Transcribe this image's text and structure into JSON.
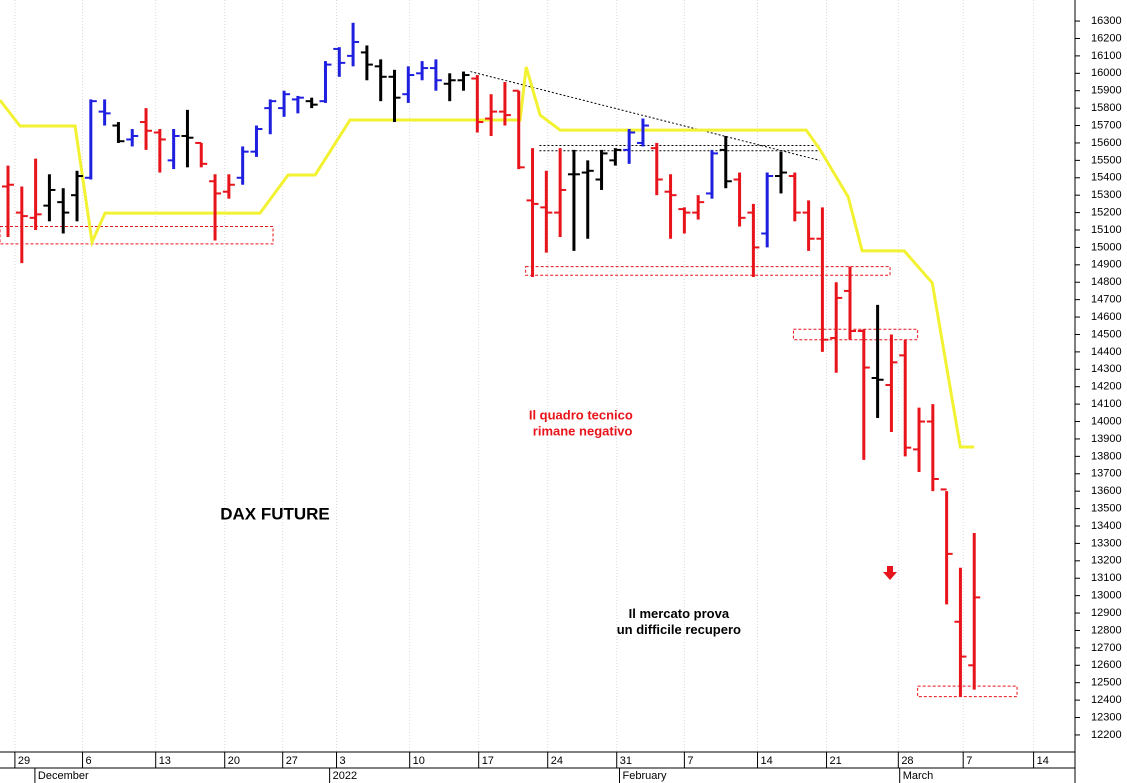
{
  "chart_data": {
    "type": "ohlc",
    "title": "DAX FUTURE",
    "x": [
      0,
      1,
      2,
      3,
      4,
      5,
      6,
      7,
      8,
      9,
      10,
      11,
      12,
      13,
      14,
      15,
      16,
      17,
      18,
      19,
      20,
      21,
      22,
      23,
      24,
      25,
      26,
      27,
      28,
      29,
      30,
      31,
      32,
      33,
      34,
      35,
      36,
      37,
      38,
      39,
      40,
      41,
      42,
      43,
      44,
      45,
      46,
      47,
      48,
      49,
      50,
      51,
      52,
      53,
      54,
      55,
      56,
      57,
      58,
      59,
      60,
      61,
      62,
      63,
      64,
      65,
      66,
      67,
      68,
      69,
      70
    ],
    "open": [
      15350,
      15200,
      15170,
      15240,
      15260,
      15300,
      15400,
      15780,
      15700,
      15620,
      15720,
      15660,
      15500,
      15640,
      15600,
      15380,
      15320,
      15400,
      15550,
      15800,
      15800,
      15850,
      15840,
      15840,
      16140,
      16100,
      16120,
      16040,
      15980,
      15880,
      16000,
      16030,
      15940,
      15960,
      15970,
      15740,
      15780,
      15900,
      15270,
      15230,
      15200,
      15420,
      15430,
      15390,
      15500,
      15560,
      15600,
      15570,
      15320,
      15220,
      15200,
      15310,
      15560,
      15390,
      15200,
      15080,
      15410,
      15410,
      15200,
      15050,
      14480,
      14750,
      14520,
      14250,
      14210,
      14380,
      13840,
      14000,
      13610,
      12850,
      12600
    ],
    "high": [
      15470,
      15350,
      15510,
      15420,
      15340,
      15440,
      15850,
      15850,
      15720,
      15680,
      15800,
      15680,
      15680,
      15790,
      15600,
      15420,
      15420,
      15580,
      15700,
      15850,
      15900,
      15870,
      15860,
      16070,
      16150,
      16290,
      16160,
      16080,
      16020,
      16040,
      16070,
      16080,
      16000,
      16010,
      15990,
      15880,
      15950,
      15900,
      15570,
      15440,
      15570,
      15560,
      15500,
      15560,
      15570,
      15680,
      15740,
      15600,
      15420,
      15230,
      15300,
      15560,
      15640,
      15430,
      15250,
      15430,
      15550,
      15430,
      15270,
      15230,
      14800,
      14890,
      14530,
      14670,
      14500,
      14470,
      14080,
      14100,
      13600,
      13160,
      13360
    ],
    "low": [
      15060,
      14910,
      15100,
      15150,
      15080,
      15150,
      15390,
      15700,
      15600,
      15580,
      15560,
      15430,
      15450,
      15460,
      15460,
      15040,
      15280,
      15360,
      15520,
      15650,
      15750,
      15770,
      15800,
      15830,
      15980,
      16040,
      15960,
      15840,
      15720,
      15830,
      15960,
      15900,
      15840,
      15900,
      15660,
      15640,
      15700,
      15450,
      14830,
      14970,
      15060,
      14980,
      15050,
      15330,
      15470,
      15480,
      15580,
      15300,
      15050,
      15080,
      15160,
      15280,
      15340,
      15120,
      14830,
      15000,
      15310,
      15150,
      14980,
      14400,
      14280,
      14470,
      13780,
      14020,
      13940,
      13800,
      13710,
      13600,
      12950,
      12420,
      12460
    ],
    "close": [
      15360,
      15180,
      15190,
      15330,
      15200,
      15410,
      15840,
      15770,
      15610,
      15640,
      15670,
      15620,
      15640,
      15630,
      15480,
      15310,
      15360,
      15550,
      15680,
      15840,
      15880,
      15860,
      15820,
      16050,
      16060,
      16180,
      16050,
      15980,
      15860,
      15990,
      16030,
      15960,
      15960,
      15990,
      15720,
      15780,
      15760,
      15460,
      15250,
      15200,
      15330,
      15420,
      15440,
      15540,
      15560,
      15660,
      15700,
      15390,
      15300,
      15200,
      15260,
      15540,
      15380,
      15170,
      15000,
      15410,
      15430,
      15200,
      15050,
      14470,
      14710,
      14520,
      14310,
      14240,
      14340,
      13850,
      14000,
      13670,
      13240,
      12650,
      12990
    ],
    "bar_colors": [
      "#e8141b",
      "#e8141b",
      "#e8141b",
      "#000000",
      "#000000",
      "#000000",
      "#1f1fe0",
      "#1f1fe0",
      "#000000",
      "#1f1fe0",
      "#e8141b",
      "#e8141b",
      "#1f1fe0",
      "#000000",
      "#e8141b",
      "#e8141b",
      "#e8141b",
      "#1f1fe0",
      "#1f1fe0",
      "#1f1fe0",
      "#1f1fe0",
      "#1f1fe0",
      "#000000",
      "#1f1fe0",
      "#1f1fe0",
      "#1f1fe0",
      "#000000",
      "#000000",
      "#000000",
      "#1f1fe0",
      "#1f1fe0",
      "#1f1fe0",
      "#000000",
      "#000000",
      "#e8141b",
      "#e8141b",
      "#e8141b",
      "#e8141b",
      "#e8141b",
      "#e8141b",
      "#e8141b",
      "#000000",
      "#000000",
      "#000000",
      "#000000",
      "#1f1fe0",
      "#1f1fe0",
      "#e8141b",
      "#e8141b",
      "#e8141b",
      "#e8141b",
      "#1f1fe0",
      "#000000",
      "#e8141b",
      "#e8141b",
      "#1f1fe0",
      "#000000",
      "#e8141b",
      "#e8141b",
      "#e8141b",
      "#e8141b",
      "#e8141b",
      "#e8141b",
      "#000000",
      "#e8141b",
      "#e8141b",
      "#e8141b",
      "#e8141b",
      "#e8141b",
      "#e8141b",
      "#e8141b"
    ],
    "stop_line": {
      "color": "#f2f233",
      "x": [
        -0.58,
        0.87,
        4.86,
        6.09,
        7.03,
        18.26,
        20.29,
        22.25,
        24.78,
        37.1,
        37.54,
        38.55,
        40,
        52.68,
        57.83,
        58.84,
        60.87,
        61.88,
        64.93,
        66.96,
        68.99,
        70
      ],
      "values": [
        15846,
        15697,
        15697,
        15031,
        15197,
        15197,
        15416,
        15416,
        15732,
        15732,
        16036,
        15760,
        15674,
        15674,
        15674,
        15560,
        15290,
        14980,
        14980,
        14796,
        13854,
        13854
      ]
    },
    "zones": [
      {
        "x": [
          -0.58,
          19.2
        ],
        "y": [
          15020,
          15120
        ]
      },
      {
        "x": [
          37.5,
          63.9
        ],
        "y": [
          14840,
          14890
        ]
      },
      {
        "x": [
          56.9,
          65.9
        ],
        "y": [
          14470,
          14530
        ]
      },
      {
        "x": [
          65.9,
          73.1
        ],
        "y": [
          12420,
          12480
        ]
      }
    ],
    "trendlines": [
      {
        "x": [
          33.5,
          58.8
        ],
        "y": [
          16010,
          15500
        ]
      },
      {
        "x": [
          38.5,
          58.8
        ],
        "y": [
          15585,
          15585
        ]
      },
      {
        "x": [
          38.5,
          58.8
        ],
        "y": [
          15555,
          15555
        ]
      }
    ],
    "annotations": [
      {
        "lines": [
          "Il quadro tecnico",
          " rimane negativo"
        ],
        "color": "#e8141b",
        "x": 41.5,
        "y": 14030
      },
      {
        "lines": [
          "Il mercato prova",
          "un difficile recupero"
        ],
        "color": "#000000",
        "x": 48.6,
        "y": 12890
      }
    ],
    "xlim": [
      -0.58,
      77.3
    ],
    "ylim": [
      12102,
      16421
    ],
    "xticks": [
      {
        "value": 0.5,
        "label": "29"
      },
      {
        "value": 5.4,
        "label": "6"
      },
      {
        "value": 10.7,
        "label": "13"
      },
      {
        "value": 15.7,
        "label": "20"
      },
      {
        "value": 19.9,
        "label": "27"
      },
      {
        "value": 23.8,
        "label": "3"
      },
      {
        "value": 29.1,
        "label": "10"
      },
      {
        "value": 34.1,
        "label": "17"
      },
      {
        "value": 39.1,
        "label": "24"
      },
      {
        "value": 44.1,
        "label": "31"
      },
      {
        "value": 49,
        "label": "7"
      },
      {
        "value": 54.3,
        "label": "14"
      },
      {
        "value": 59.3,
        "label": "21"
      },
      {
        "value": 64.5,
        "label": "28"
      },
      {
        "value": 69.2,
        "label": "7"
      },
      {
        "value": 74.3,
        "label": "14"
      }
    ],
    "month_labels": [
      {
        "value": 1.95,
        "label": "December"
      },
      {
        "value": 23.3,
        "label": "2022"
      },
      {
        "value": 44.3,
        "label": "February"
      },
      {
        "value": 64.6,
        "label": "March"
      }
    ],
    "yticks": [
      12200,
      12300,
      12400,
      12500,
      12600,
      12700,
      12800,
      12900,
      13000,
      13100,
      13200,
      13300,
      13400,
      13500,
      13600,
      13700,
      13800,
      13900,
      14000,
      14100,
      14200,
      14300,
      14400,
      14500,
      14600,
      14700,
      14800,
      14900,
      15000,
      15100,
      15200,
      15300,
      15400,
      15500,
      15600,
      15700,
      15800,
      15900,
      16000,
      16100,
      16200,
      16300
    ],
    "grid": true
  }
}
